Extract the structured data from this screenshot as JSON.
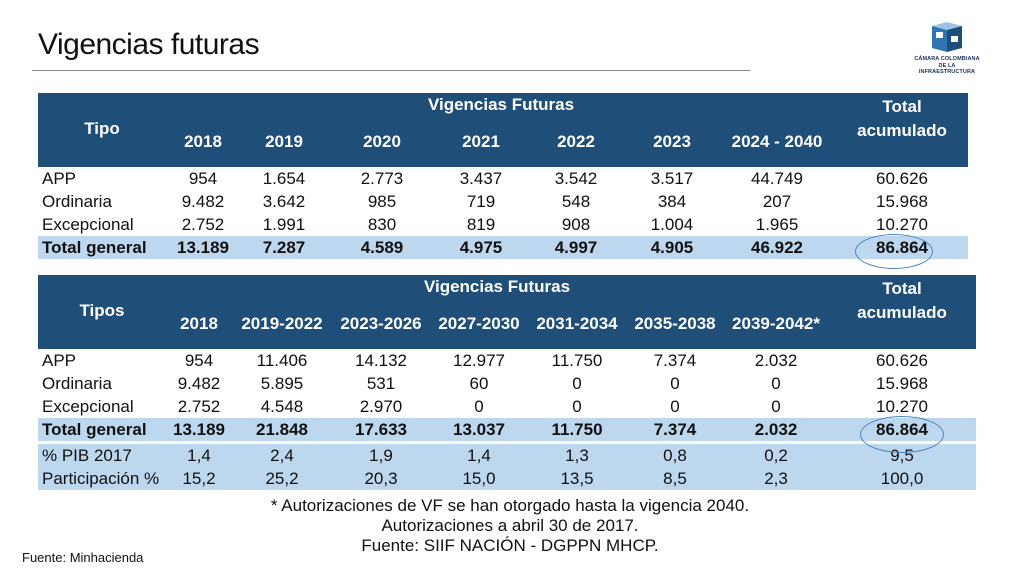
{
  "title": "Vigencias futuras",
  "logo": {
    "line1": "CÁMARA COLOMBIANA",
    "line2": "DE LA INFRAESTRUCTURA"
  },
  "table1": {
    "label_header": "Tipo",
    "group_header": "Vigencias Futuras",
    "columns": [
      "2018",
      "2019",
      "2020",
      "2021",
      "2022",
      "2023",
      "2024 - 2040"
    ],
    "total_header_1": "Total",
    "total_header_2": "acumulado",
    "rows": [
      {
        "label": "APP",
        "values": [
          "954",
          "1.654",
          "2.773",
          "3.437",
          "3.542",
          "3.517",
          "44.749"
        ],
        "total": "60.626"
      },
      {
        "label": "Ordinaria",
        "values": [
          "9.482",
          "3.642",
          "985",
          "719",
          "548",
          "384",
          "207"
        ],
        "total": "15.968"
      },
      {
        "label": "Excepcional",
        "values": [
          "2.752",
          "1.991",
          "830",
          "819",
          "908",
          "1.004",
          "1.965"
        ],
        "total": "10.270"
      }
    ],
    "total_row": {
      "label": "Total general",
      "values": [
        "13.189",
        "7.287",
        "4.589",
        "4.975",
        "4.997",
        "4.905",
        "46.922"
      ],
      "total": "86.864"
    }
  },
  "table2": {
    "label_header": "Tipos",
    "group_header": "Vigencias Futuras",
    "columns": [
      "2018",
      "2019-2022",
      "2023-2026",
      "2027-2030",
      "2031-2034",
      "2035-2038",
      "2039-2042*"
    ],
    "total_header_1": "Total",
    "total_header_2": "acumulado",
    "rows": [
      {
        "label": "APP",
        "values": [
          "954",
          "11.406",
          "14.132",
          "12.977",
          "11.750",
          "7.374",
          "2.032"
        ],
        "total": "60.626"
      },
      {
        "label": "Ordinaria",
        "values": [
          "9.482",
          "5.895",
          "531",
          "60",
          "0",
          "0",
          "0"
        ],
        "total": "15.968"
      },
      {
        "label": "Excepcional",
        "values": [
          "2.752",
          "4.548",
          "2.970",
          "0",
          "0",
          "0",
          "0"
        ],
        "total": "10.270"
      }
    ],
    "total_row": {
      "label": "Total general",
      "values": [
        "13.189",
        "21.848",
        "17.633",
        "13.037",
        "11.750",
        "7.374",
        "2.032"
      ],
      "total": "86.864"
    },
    "extra_rows": [
      {
        "label": "% PIB 2017",
        "values": [
          "1,4",
          "2,4",
          "1,9",
          "1,4",
          "1,3",
          "0,8",
          "0,2"
        ],
        "total": "9,5"
      },
      {
        "label": "Participación %",
        "values": [
          "15,2",
          "25,2",
          "20,3",
          "15,0",
          "13,5",
          "8,5",
          "2,3"
        ],
        "total": "100,0"
      }
    ]
  },
  "notes": [
    "* Autorizaciones de VF se han otorgado hasta la vigencia 2040.",
    "Autorizaciones a abril 30 de 2017.",
    "Fuente: SIIF NACIÓN - DGPPN MHCP."
  ],
  "source": "Fuente: Minhacienda"
}
